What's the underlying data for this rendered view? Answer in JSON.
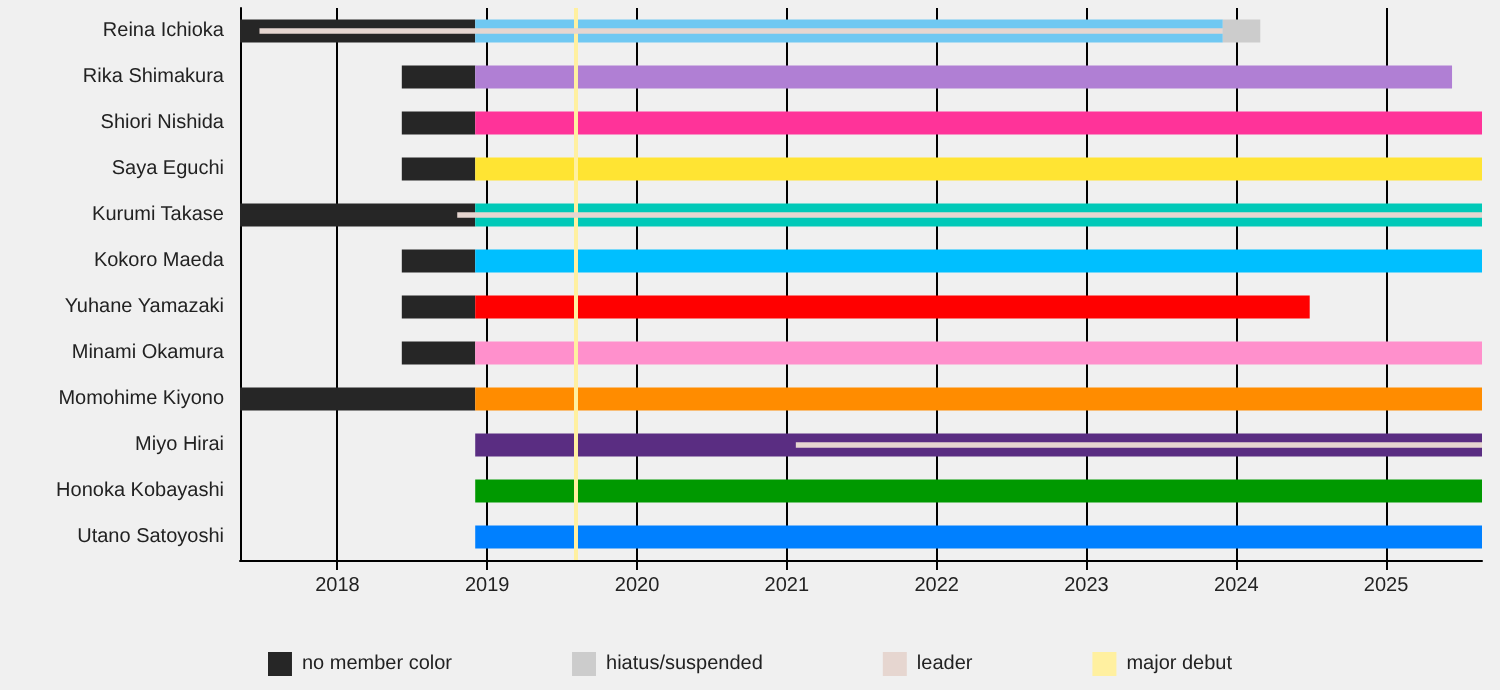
{
  "chart_data": {
    "type": "bar",
    "orientation": "horizontal",
    "categories": [
      "Reina Ichioka",
      "Rika Shimakura",
      "Shiori Nishida",
      "Saya Eguchi",
      "Kurumi Takase",
      "Kokoro Maeda",
      "Yuhane Yamazaki",
      "Minami Okamura",
      "Momohime Kiyono",
      "Miyo Hirai",
      "Honoka Kobayashi",
      "Utano Satoyoshi"
    ],
    "series": [
      {
        "name": "no member color",
        "color": "#262626",
        "base": [
          2017.35,
          2018.43,
          2018.43,
          2018.43,
          2017.35,
          2018.43,
          2018.43,
          2018.43,
          2017.35,
          null,
          null,
          null
        ],
        "values": [
          1.57,
          0.49,
          0.49,
          0.49,
          1.57,
          0.49,
          0.49,
          0.49,
          1.57,
          null,
          null,
          null
        ]
      },
      {
        "colors": [
          "#70c8f2",
          "#b07fd4",
          "#ff3399",
          "#ffe433",
          "#00c9b8",
          "#00bfff",
          "#ff0000",
          "#ff90cc",
          "#ff8c00",
          "#5a2d82",
          "#009900",
          "#0080ff"
        ],
        "base": [
          2018.92,
          2018.92,
          2018.92,
          2018.92,
          2018.92,
          2018.92,
          2018.92,
          2018.92,
          2018.92,
          2018.92,
          2018.92,
          2018.92
        ],
        "values": [
          4.99,
          6.52,
          6.72,
          6.72,
          6.72,
          6.72,
          5.57,
          6.72,
          6.72,
          6.72,
          6.72,
          6.72
        ]
      },
      {
        "name": "hiatus/suspended",
        "color": "#cccccc",
        "base": [
          2023.91,
          null,
          null,
          null,
          null,
          null,
          null,
          null,
          null,
          null,
          null,
          null
        ],
        "values": [
          0.25,
          null,
          null,
          null,
          null,
          null,
          null,
          null,
          null,
          null,
          null,
          null
        ]
      },
      {
        "name": "leader",
        "color": "#e6d6d0",
        "base": [
          2017.48,
          null,
          null,
          null,
          2018.8,
          null,
          null,
          null,
          null,
          2021.06,
          null,
          null
        ],
        "values": [
          6.43,
          null,
          null,
          null,
          6.84,
          null,
          null,
          null,
          null,
          4.58,
          null,
          null
        ]
      }
    ],
    "ref_lines": [
      {
        "axis": "x",
        "value": 2019.59,
        "label": "major debut",
        "color": "#fff0a0"
      }
    ],
    "xlim": [
      2017.35,
      2025.64
    ],
    "xticks": [
      2018,
      2019,
      2020,
      2021,
      2022,
      2023,
      2024,
      2025
    ],
    "grid": "x",
    "legend": "bottom"
  }
}
